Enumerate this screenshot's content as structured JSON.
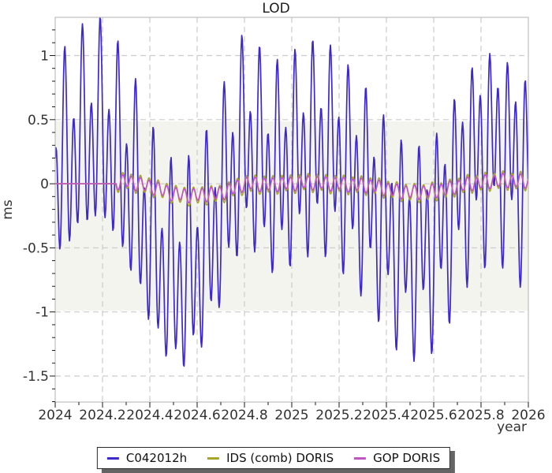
{
  "title": "LOD",
  "x_axis": {
    "label": "year",
    "lim": [
      2024,
      2026
    ],
    "ticks": [
      {
        "v": 2024,
        "label": "2024"
      },
      {
        "v": 2024.2,
        "label": "2024.2"
      },
      {
        "v": 2024.4,
        "label": "2024.4"
      },
      {
        "v": 2024.6,
        "label": "2024.6"
      },
      {
        "v": 2024.8,
        "label": "2024.8"
      },
      {
        "v": 2025,
        "label": "2025"
      },
      {
        "v": 2025.2,
        "label": "2025.2"
      },
      {
        "v": 2025.4,
        "label": "2025.4"
      },
      {
        "v": 2025.6,
        "label": "2025.6"
      },
      {
        "v": 2025.8,
        "label": "2025.8"
      },
      {
        "v": 2026,
        "label": "2026"
      }
    ],
    "minor_step": 0.1
  },
  "y_axis": {
    "label": "ms",
    "lim": [
      -1.703,
      1.298
    ],
    "ticks": [
      {
        "v": 1,
        "label": "1"
      },
      {
        "v": 0.5,
        "label": "0.5"
      },
      {
        "v": 0,
        "label": "0"
      },
      {
        "v": -0.5,
        "label": "-0.5"
      },
      {
        "v": -1,
        "label": "-1"
      },
      {
        "v": -1.5,
        "label": "-1.5"
      }
    ],
    "minor_step": 0.1
  },
  "band": {
    "from": -0.99,
    "to": 0.486,
    "color": "#f4f4ef"
  },
  "styles": {
    "grid_color": "#cccccc",
    "frame_color": "#b0b0b0",
    "tick_color": "#1a1a1a",
    "text_color": "#333333",
    "background": "#ffffff"
  },
  "legend": {
    "items": [
      {
        "label": "C042012h",
        "color": "#3d28cf"
      },
      {
        "label": "IDS (comb) DORIS",
        "color": "#a6a62c"
      },
      {
        "label": "GOP DORIS",
        "color": "#c352c3"
      }
    ]
  },
  "chart_data": {
    "type": "line",
    "title": "LOD",
    "xlabel": "year",
    "ylabel": "ms",
    "xlim": [
      2024,
      2026
    ],
    "ylim": [
      -1.703,
      1.298
    ],
    "grid": true,
    "legend_position": "below-plot",
    "shaded_band_ms": [
      -0.99,
      0.486
    ],
    "description": "Length-of-day (LOD) in ms vs time. C042012h shows seasonal variation plus fortnightly/monthly tidal oscillations between about -1.66 and +1.30 ms; the two DORIS series stay near zero (flat at 0 until ~2024.26, then small ~13.7-day oscillations dipping to ~-0.15 ms mid-year).",
    "series": [
      {
        "name": "C042012h",
        "color": "#3d28cf",
        "width": 1.7,
        "synthesis": {
          "t_start": 2024.0,
          "t_end": 2026.0,
          "step_days": 1,
          "flat_zero_until": null,
          "seasonal_points": [
            [
              2024.0,
              0.0
            ],
            [
              2024.05,
              0.18
            ],
            [
              2024.1,
              0.3
            ],
            [
              2024.15,
              0.36
            ],
            [
              2024.2,
              0.38
            ],
            [
              2024.25,
              0.25
            ],
            [
              2024.3,
              0.05
            ],
            [
              2024.35,
              -0.15
            ],
            [
              2024.4,
              -0.42
            ],
            [
              2024.45,
              -0.62
            ],
            [
              2024.5,
              -0.74
            ],
            [
              2024.55,
              -0.73
            ],
            [
              2024.6,
              -0.62
            ],
            [
              2024.65,
              -0.45
            ],
            [
              2024.7,
              -0.2
            ],
            [
              2024.75,
              0.1
            ],
            [
              2024.8,
              0.3
            ],
            [
              2024.85,
              0.22
            ],
            [
              2024.9,
              0.08
            ],
            [
              2024.95,
              0.08
            ],
            [
              2025.0,
              0.15
            ],
            [
              2025.05,
              0.22
            ],
            [
              2025.1,
              0.26
            ],
            [
              2025.15,
              0.24
            ],
            [
              2025.2,
              0.16
            ],
            [
              2025.25,
              0.05
            ],
            [
              2025.3,
              -0.05
            ],
            [
              2025.35,
              -0.18
            ],
            [
              2025.4,
              -0.33
            ],
            [
              2025.45,
              -0.46
            ],
            [
              2025.5,
              -0.52
            ],
            [
              2025.55,
              -0.5
            ],
            [
              2025.6,
              -0.44
            ],
            [
              2025.65,
              -0.28
            ],
            [
              2025.7,
              -0.06
            ],
            [
              2025.75,
              0.12
            ],
            [
              2025.8,
              0.22
            ],
            [
              2025.85,
              0.28
            ],
            [
              2025.9,
              0.24
            ],
            [
              2025.95,
              0.12
            ],
            [
              2026.0,
              0.08
            ]
          ],
          "tides": [
            {
              "name": "fortnightly",
              "period_days": 13.66,
              "amplitude_ms": 0.6,
              "peak_at": 2024.19
            },
            {
              "name": "monthly",
              "period_days": 27.55,
              "amplitude_ms": 0.33,
              "peak_at": 2024.19
            }
          ]
        }
      },
      {
        "name": "IDS (comb) DORIS",
        "color": "#a6a62c",
        "width": 1.6,
        "synthesis": {
          "t_start": 2024.0,
          "t_end": 2026.0,
          "step_days": 1,
          "flat_zero_until": 2024.26,
          "seasonal_points": [
            [
              2024.26,
              0.01
            ],
            [
              2024.3,
              0.02
            ],
            [
              2024.35,
              0.0
            ],
            [
              2024.4,
              -0.02
            ],
            [
              2024.45,
              -0.05
            ],
            [
              2024.5,
              -0.08
            ],
            [
              2024.55,
              -0.095
            ],
            [
              2024.6,
              -0.095
            ],
            [
              2024.65,
              -0.085
            ],
            [
              2024.7,
              -0.08
            ],
            [
              2024.75,
              -0.04
            ],
            [
              2024.8,
              -0.005
            ],
            [
              2024.85,
              0.0
            ],
            [
              2024.9,
              -0.01
            ],
            [
              2024.95,
              0.0
            ],
            [
              2025.0,
              0.0
            ],
            [
              2025.05,
              0.01
            ],
            [
              2025.1,
              0.01
            ],
            [
              2025.15,
              0.0
            ],
            [
              2025.2,
              0.0
            ],
            [
              2025.25,
              -0.01
            ],
            [
              2025.3,
              -0.01
            ],
            [
              2025.35,
              -0.02
            ],
            [
              2025.4,
              -0.04
            ],
            [
              2025.45,
              -0.06
            ],
            [
              2025.5,
              -0.07
            ],
            [
              2025.55,
              -0.07
            ],
            [
              2025.6,
              -0.06
            ],
            [
              2025.65,
              -0.05
            ],
            [
              2025.7,
              -0.02
            ],
            [
              2025.75,
              0.0
            ],
            [
              2025.8,
              0.01
            ],
            [
              2025.85,
              0.02
            ],
            [
              2025.9,
              0.025
            ],
            [
              2025.95,
              0.02
            ],
            [
              2026.0,
              0.02
            ]
          ],
          "tides": [
            {
              "name": "fortnightly",
              "period_days": 13.66,
              "amplitude_ms": 0.068,
              "peak_at": 2024.285
            },
            {
              "name": "monthly",
              "period_days": 27.55,
              "amplitude_ms": 0.012,
              "peak_at": 2024.3
            }
          ]
        }
      },
      {
        "name": "GOP DORIS",
        "color": "#c352c3",
        "width": 1.6,
        "synthesis": {
          "t_start": 2024.0,
          "t_end": 2026.0,
          "step_days": 1,
          "flat_zero_until": 2024.26,
          "seasonal_points": [
            [
              2024.26,
              0.01
            ],
            [
              2024.3,
              0.02
            ],
            [
              2024.35,
              0.0
            ],
            [
              2024.4,
              -0.02
            ],
            [
              2024.45,
              -0.05
            ],
            [
              2024.5,
              -0.08
            ],
            [
              2024.55,
              -0.09
            ],
            [
              2024.6,
              -0.09
            ],
            [
              2024.65,
              -0.08
            ],
            [
              2024.7,
              -0.075
            ],
            [
              2024.75,
              -0.04
            ],
            [
              2024.8,
              0.0
            ],
            [
              2024.85,
              0.0
            ],
            [
              2024.9,
              -0.01
            ],
            [
              2024.95,
              0.0
            ],
            [
              2025.0,
              0.0
            ],
            [
              2025.05,
              0.01
            ],
            [
              2025.1,
              0.01
            ],
            [
              2025.15,
              0.0
            ],
            [
              2025.2,
              0.0
            ],
            [
              2025.25,
              -0.01
            ],
            [
              2025.3,
              -0.01
            ],
            [
              2025.35,
              -0.02
            ],
            [
              2025.4,
              -0.04
            ],
            [
              2025.45,
              -0.06
            ],
            [
              2025.5,
              -0.065
            ],
            [
              2025.55,
              -0.065
            ],
            [
              2025.6,
              -0.055
            ],
            [
              2025.65,
              -0.045
            ],
            [
              2025.7,
              -0.02
            ],
            [
              2025.75,
              0.0
            ],
            [
              2025.8,
              0.01
            ],
            [
              2025.85,
              0.02
            ],
            [
              2025.9,
              0.025
            ],
            [
              2025.95,
              0.02
            ],
            [
              2026.0,
              0.02
            ]
          ],
          "tides": [
            {
              "name": "fortnightly",
              "period_days": 13.66,
              "amplitude_ms": 0.05,
              "peak_at": 2024.285
            },
            {
              "name": "monthly",
              "period_days": 27.55,
              "amplitude_ms": 0.01,
              "peak_at": 2024.3
            }
          ]
        }
      }
    ]
  }
}
